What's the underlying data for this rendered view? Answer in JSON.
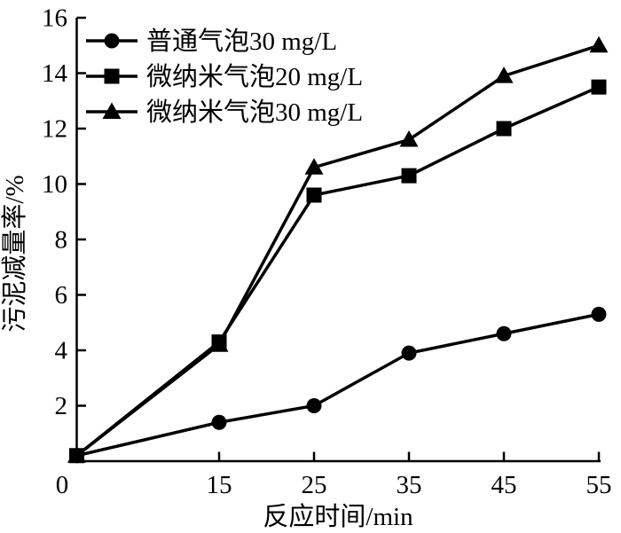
{
  "figure": {
    "background_color": "#ffffff",
    "line_color": "#000000"
  },
  "chart_data": {
    "type": "line",
    "title": "",
    "xlabel": "反应时间/min",
    "ylabel": "污泥减量率/%",
    "x": [
      0,
      15,
      25,
      35,
      45,
      55
    ],
    "x_ticks": [
      "0",
      "15",
      "25",
      "35",
      "45",
      "55"
    ],
    "y_ticks": [
      "0",
      "2",
      "4",
      "6",
      "8",
      "10",
      "12",
      "14",
      "16"
    ],
    "xlim": [
      0,
      55.2
    ],
    "ylim": [
      0,
      16
    ],
    "grid": false,
    "legend_position": "top-left",
    "series": [
      {
        "name": "普通气泡30 mg/L",
        "marker": "circle",
        "color": "#000000",
        "values": [
          0.2,
          1.4,
          2.0,
          3.9,
          4.6,
          5.3
        ]
      },
      {
        "name": "微纳米气泡20 mg/L",
        "marker": "square",
        "color": "#000000",
        "values": [
          0.2,
          4.3,
          9.6,
          10.3,
          12.0,
          13.5
        ]
      },
      {
        "name": "微纳米气泡30 mg/L",
        "marker": "triangle",
        "color": "#000000",
        "values": [
          0.2,
          4.2,
          10.6,
          11.6,
          13.9,
          15.0
        ]
      }
    ]
  }
}
